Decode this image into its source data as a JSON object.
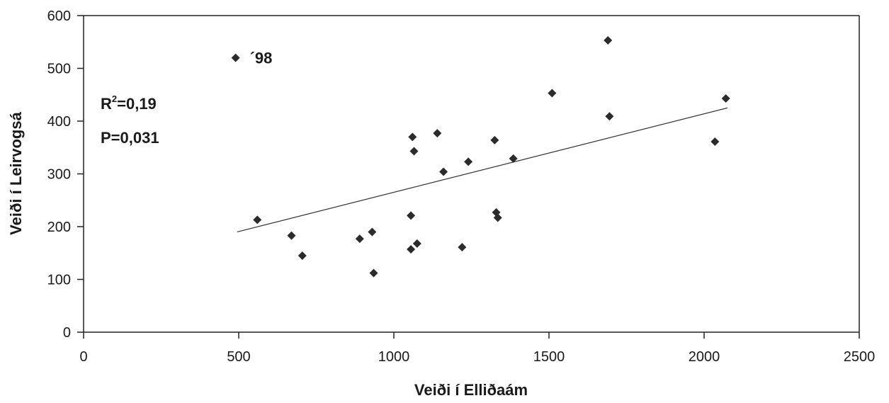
{
  "chart_data": {
    "type": "scatter",
    "xlabel": "Veiði í Elliðaám",
    "ylabel": "Veiði í Leirvogsá",
    "xlim": [
      0,
      2500
    ],
    "ylim": [
      0,
      600
    ],
    "xticks": [
      0,
      500,
      1000,
      1500,
      2000,
      2500
    ],
    "yticks": [
      0,
      100,
      200,
      300,
      400,
      500,
      600
    ],
    "grid": false,
    "points": [
      {
        "x": 490,
        "y": 520,
        "label": "´98"
      },
      {
        "x": 560,
        "y": 213
      },
      {
        "x": 670,
        "y": 183
      },
      {
        "x": 705,
        "y": 145
      },
      {
        "x": 890,
        "y": 177
      },
      {
        "x": 930,
        "y": 190
      },
      {
        "x": 935,
        "y": 112
      },
      {
        "x": 1055,
        "y": 221
      },
      {
        "x": 1055,
        "y": 157
      },
      {
        "x": 1060,
        "y": 370
      },
      {
        "x": 1065,
        "y": 343
      },
      {
        "x": 1075,
        "y": 168
      },
      {
        "x": 1140,
        "y": 377
      },
      {
        "x": 1160,
        "y": 304
      },
      {
        "x": 1220,
        "y": 161
      },
      {
        "x": 1240,
        "y": 323
      },
      {
        "x": 1325,
        "y": 364
      },
      {
        "x": 1330,
        "y": 227
      },
      {
        "x": 1335,
        "y": 217
      },
      {
        "x": 1385,
        "y": 329
      },
      {
        "x": 1510,
        "y": 453
      },
      {
        "x": 1690,
        "y": 553
      },
      {
        "x": 1695,
        "y": 409
      },
      {
        "x": 2035,
        "y": 361
      },
      {
        "x": 2070,
        "y": 443
      }
    ],
    "trendline": {
      "x": [
        495,
        2075
      ],
      "y": [
        190,
        425
      ]
    },
    "annotations": {
      "r_squared": "R²=0,19",
      "r_squared_base": "R",
      "r_squared_sup": "2",
      "r_squared_value": "=0,19",
      "p_value": "P=0,031"
    }
  }
}
